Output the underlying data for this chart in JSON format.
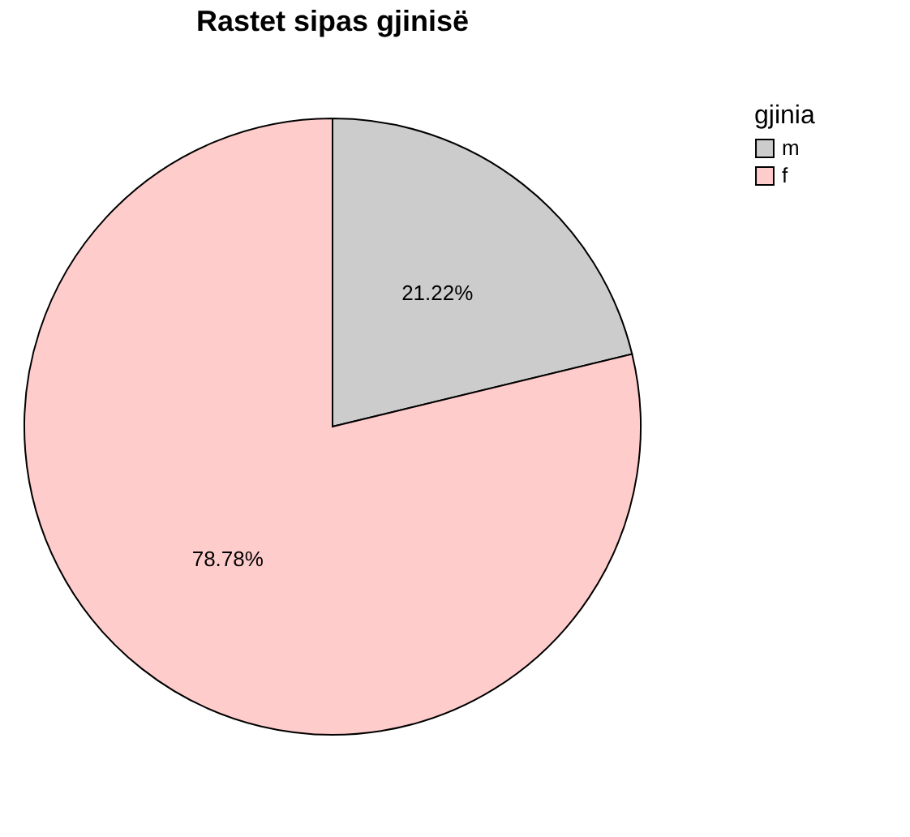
{
  "chart_data": {
    "type": "pie",
    "title": "Rastet sipas gjinisë",
    "legend_title": "gjinia",
    "legend": "top right",
    "categories": [
      "m",
      "f"
    ],
    "values": [
      21.22,
      78.78
    ],
    "colors": [
      "#cccccc",
      "#ffcccc"
    ],
    "value_labels": [
      "21.22%",
      "78.78%"
    ]
  }
}
